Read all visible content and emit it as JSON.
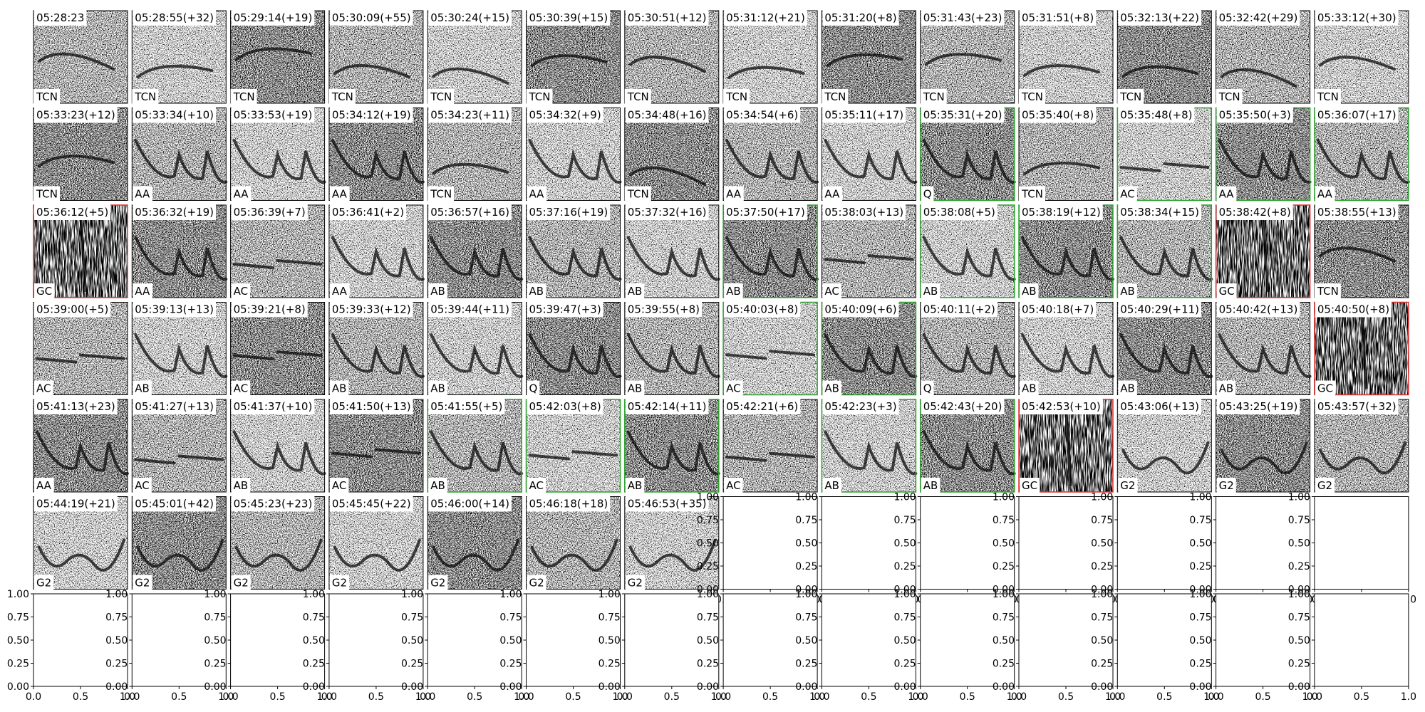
{
  "panels": [
    {
      "time": "05:28:23",
      "label": "TCN",
      "border": "#000000"
    },
    {
      "time": "05:28:55(+32)",
      "label": "TCN",
      "border": "#000000"
    },
    {
      "time": "05:29:14(+19)",
      "label": "TCN",
      "border": "#000000"
    },
    {
      "time": "05:30:09(+55)",
      "label": "TCN",
      "border": "#000000"
    },
    {
      "time": "05:30:24(+15)",
      "label": "TCN",
      "border": "#000000"
    },
    {
      "time": "05:30:39(+15)",
      "label": "TCN",
      "border": "#000000"
    },
    {
      "time": "05:30:51(+12)",
      "label": "TCN",
      "border": "#000000"
    },
    {
      "time": "05:31:12(+21)",
      "label": "TCN",
      "border": "#000000"
    },
    {
      "time": "05:31:20(+8)",
      "label": "TCN",
      "border": "#000000"
    },
    {
      "time": "05:31:43(+23)",
      "label": "TCN",
      "border": "#000000"
    },
    {
      "time": "05:31:51(+8)",
      "label": "TCN",
      "border": "#000000"
    },
    {
      "time": "05:32:13(+22)",
      "label": "TCN",
      "border": "#000000"
    },
    {
      "time": "05:32:42(+29)",
      "label": "TCN",
      "border": "#000000"
    },
    {
      "time": "05:33:12(+30)",
      "label": "TCN",
      "border": "#000000"
    },
    {
      "time": "05:33:23(+12)",
      "label": "TCN",
      "border": "#000000"
    },
    {
      "time": "05:33:34(+10)",
      "label": "AA",
      "border": "#000000"
    },
    {
      "time": "05:33:53(+19)",
      "label": "AA",
      "border": "#000000"
    },
    {
      "time": "05:34:12(+19)",
      "label": "AA",
      "border": "#000000"
    },
    {
      "time": "05:34:23(+11)",
      "label": "TCN",
      "border": "#000000"
    },
    {
      "time": "05:34:32(+9)",
      "label": "AA",
      "border": "#000000"
    },
    {
      "time": "05:34:48(+16)",
      "label": "TCN",
      "border": "#000000"
    },
    {
      "time": "05:34:54(+6)",
      "label": "AA",
      "border": "#000000"
    },
    {
      "time": "05:35:11(+17)",
      "label": "AA",
      "border": "#000000"
    },
    {
      "time": "05:35:31(+20)",
      "label": "Q",
      "border": "#2ca02c"
    },
    {
      "time": "05:35:40(+8)",
      "label": "TCN",
      "border": "#000000"
    },
    {
      "time": "05:35:48(+8)",
      "label": "AC",
      "border": "#2ca02c"
    },
    {
      "time": "05:35:50(+3)",
      "label": "AA",
      "border": "#2ca02c"
    },
    {
      "time": "05:36:07(+17)",
      "label": "AA",
      "border": "#2ca02c"
    },
    {
      "time": "05:36:12(+5)",
      "label": "GC",
      "border": "#e03030"
    },
    {
      "time": "05:36:32(+19)",
      "label": "AA",
      "border": "#000000"
    },
    {
      "time": "05:36:39(+7)",
      "label": "AC",
      "border": "#000000"
    },
    {
      "time": "05:36:41(+2)",
      "label": "AA",
      "border": "#000000"
    },
    {
      "time": "05:36:57(+16)",
      "label": "AB",
      "border": "#000000"
    },
    {
      "time": "05:37:16(+19)",
      "label": "AB",
      "border": "#000000"
    },
    {
      "time": "05:37:32(+16)",
      "label": "AB",
      "border": "#000000"
    },
    {
      "time": "05:37:50(+17)",
      "label": "AB",
      "border": "#2ca02c"
    },
    {
      "time": "05:38:03(+13)",
      "label": "AC",
      "border": "#000000"
    },
    {
      "time": "05:38:08(+5)",
      "label": "AB",
      "border": "#2ca02c"
    },
    {
      "time": "05:38:19(+12)",
      "label": "AB",
      "border": "#2ca02c"
    },
    {
      "time": "05:38:34(+15)",
      "label": "AB",
      "border": "#2ca02c"
    },
    {
      "time": "05:38:42(+8)",
      "label": "GC",
      "border": "#e03030"
    },
    {
      "time": "05:38:55(+13)",
      "label": "TCN",
      "border": "#000000"
    },
    {
      "time": "05:39:00(+5)",
      "label": "AC",
      "border": "#000000"
    },
    {
      "time": "05:39:13(+13)",
      "label": "AB",
      "border": "#000000"
    },
    {
      "time": "05:39:21(+8)",
      "label": "AC",
      "border": "#000000"
    },
    {
      "time": "05:39:33(+12)",
      "label": "AB",
      "border": "#000000"
    },
    {
      "time": "05:39:44(+11)",
      "label": "AB",
      "border": "#000000"
    },
    {
      "time": "05:39:47(+3)",
      "label": "Q",
      "border": "#000000"
    },
    {
      "time": "05:39:55(+8)",
      "label": "AB",
      "border": "#000000"
    },
    {
      "time": "05:40:03(+8)",
      "label": "AC",
      "border": "#2ca02c"
    },
    {
      "time": "05:40:09(+6)",
      "label": "AB",
      "border": "#2ca02c"
    },
    {
      "time": "05:40:11(+2)",
      "label": "Q",
      "border": "#000000"
    },
    {
      "time": "05:40:18(+7)",
      "label": "AB",
      "border": "#000000"
    },
    {
      "time": "05:40:29(+11)",
      "label": "AB",
      "border": "#000000"
    },
    {
      "time": "05:40:42(+13)",
      "label": "AB",
      "border": "#000000"
    },
    {
      "time": "05:40:50(+8)",
      "label": "GC",
      "border": "#e03030"
    },
    {
      "time": "05:41:13(+23)",
      "label": "AA",
      "border": "#000000"
    },
    {
      "time": "05:41:27(+13)",
      "label": "AC",
      "border": "#000000"
    },
    {
      "time": "05:41:37(+10)",
      "label": "AB",
      "border": "#000000"
    },
    {
      "time": "05:41:50(+13)",
      "label": "AC",
      "border": "#000000"
    },
    {
      "time": "05:41:55(+5)",
      "label": "AB",
      "border": "#2ca02c"
    },
    {
      "time": "05:42:03(+8)",
      "label": "AC",
      "border": "#2ca02c"
    },
    {
      "time": "05:42:14(+11)",
      "label": "AB",
      "border": "#2ca02c"
    },
    {
      "time": "05:42:21(+6)",
      "label": "AC",
      "border": "#000000"
    },
    {
      "time": "05:42:23(+3)",
      "label": "AB",
      "border": "#2ca02c"
    },
    {
      "time": "05:42:43(+20)",
      "label": "AB",
      "border": "#2ca02c"
    },
    {
      "time": "05:42:53(+10)",
      "label": "GC",
      "border": "#e03030"
    },
    {
      "time": "05:43:06(+13)",
      "label": "G2",
      "border": "#000000"
    },
    {
      "time": "05:43:25(+19)",
      "label": "G2",
      "border": "#000000"
    },
    {
      "time": "05:43:57(+32)",
      "label": "G2",
      "border": "#000000"
    },
    {
      "time": "05:44:19(+21)",
      "label": "G2",
      "border": "#000000"
    },
    {
      "time": "05:45:01(+42)",
      "label": "G2",
      "border": "#000000"
    },
    {
      "time": "05:45:23(+23)",
      "label": "G2",
      "border": "#000000"
    },
    {
      "time": "05:45:45(+22)",
      "label": "G2",
      "border": "#000000"
    },
    {
      "time": "05:46:00(+14)",
      "label": "G2",
      "border": "#000000"
    },
    {
      "time": "05:46:18(+18)",
      "label": "G2",
      "border": "#000000"
    },
    {
      "time": "05:46:53(+35)",
      "label": "G2",
      "border": "#000000"
    }
  ],
  "empty_axes": {
    "xticks": [
      {
        "value": 0,
        "label": "0.0"
      },
      0.5,
      {
        "value": 1,
        "label": "1.0"
      }
    ],
    "yticks": [
      {
        "value": 0,
        "label": "0.00"
      },
      0.25,
      {
        "value": 0.5,
        "label": "0.50"
      },
      0.75,
      {
        "value": 1,
        "label": "1.00"
      }
    ]
  }
}
